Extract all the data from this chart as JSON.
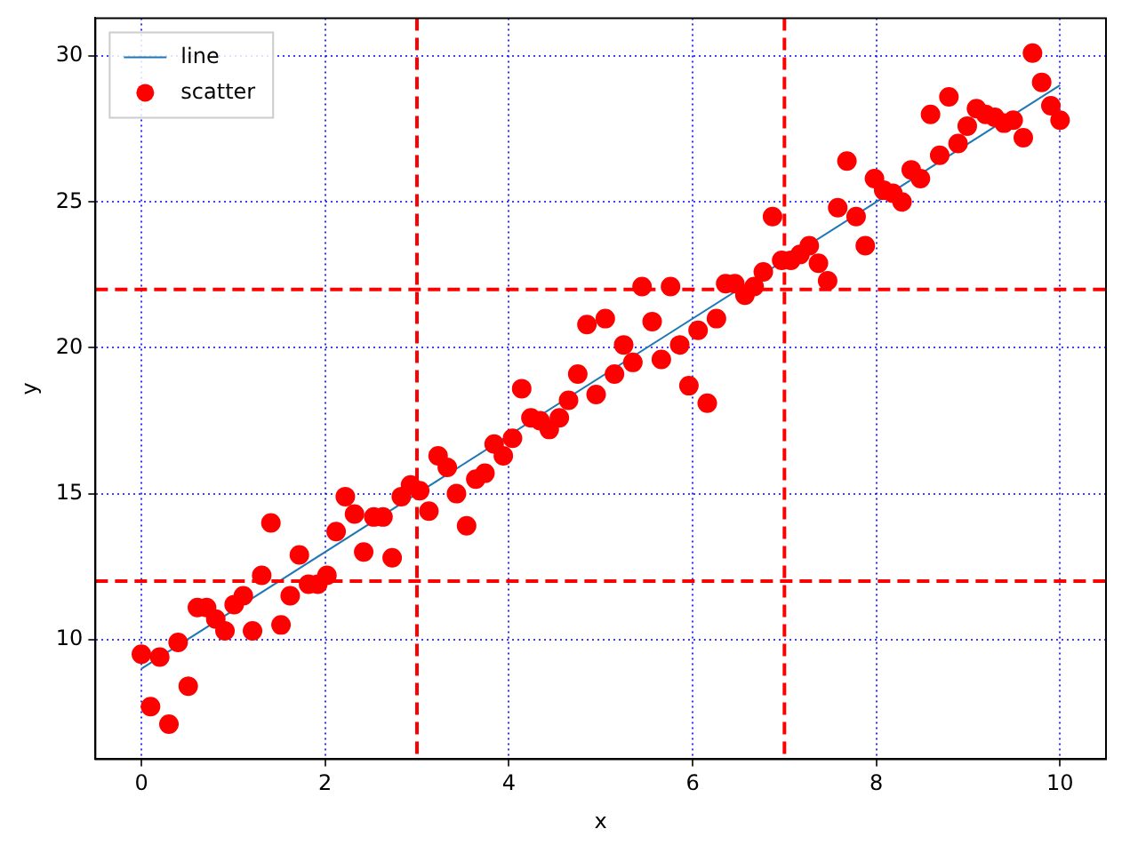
{
  "chart_data": {
    "type": "scatter",
    "xlabel": "x",
    "ylabel": "y",
    "xlim": [
      -0.5,
      10.5
    ],
    "ylim": [
      5.9,
      31.3
    ],
    "xticks": [
      0,
      2,
      4,
      6,
      8,
      10
    ],
    "yticks": [
      10,
      15,
      20,
      25,
      30
    ],
    "grid": true,
    "legend": "top left",
    "series": [
      {
        "name": "line",
        "type": "line",
        "color": "#1f77b4",
        "marker": "none",
        "line_style": "solid",
        "x": [
          0,
          10
        ],
        "values": [
          9,
          29
        ]
      },
      {
        "name": "scatter",
        "color": "#ff0000",
        "marker": "circle",
        "x": [
          0,
          0.1,
          0.2,
          0.3,
          0.4,
          0.51,
          0.61,
          0.71,
          0.81,
          0.91,
          1.01,
          1.11,
          1.21,
          1.31,
          1.41,
          1.52,
          1.62,
          1.72,
          1.82,
          1.92,
          2.02,
          2.12,
          2.22,
          2.32,
          2.42,
          2.53,
          2.63,
          2.73,
          2.83,
          2.93,
          3.03,
          3.13,
          3.23,
          3.33,
          3.43,
          3.54,
          3.64,
          3.74,
          3.84,
          3.94,
          4.04,
          4.14,
          4.24,
          4.34,
          4.44,
          4.55,
          4.65,
          4.75,
          4.85,
          4.95,
          5.05,
          5.15,
          5.25,
          5.35,
          5.45,
          5.56,
          5.66,
          5.76,
          5.86,
          5.96,
          6.06,
          6.16,
          6.26,
          6.36,
          6.46,
          6.57,
          6.67,
          6.77,
          6.87,
          6.97,
          7.07,
          7.17,
          7.27,
          7.37,
          7.47,
          7.58,
          7.68,
          7.78,
          7.88,
          7.98,
          8.08,
          8.18,
          8.28,
          8.38,
          8.48,
          8.59,
          8.69,
          8.79,
          8.89,
          8.99,
          9.09,
          9.19,
          9.29,
          9.39,
          9.49,
          9.6,
          9.7,
          9.8,
          9.9,
          10
        ],
        "values": [
          9.5,
          7.7,
          9.4,
          7.1,
          9.9,
          8.4,
          11.1,
          11.1,
          10.7,
          10.3,
          11.2,
          11.5,
          10.3,
          12.2,
          14.0,
          10.5,
          11.5,
          12.9,
          11.9,
          11.9,
          12.2,
          13.7,
          14.9,
          14.3,
          13.0,
          14.2,
          14.2,
          12.8,
          14.9,
          15.3,
          15.1,
          14.4,
          16.3,
          15.9,
          15.0,
          13.9,
          15.5,
          15.7,
          16.7,
          16.3,
          16.9,
          18.6,
          17.6,
          17.5,
          17.2,
          17.6,
          18.2,
          19.1,
          20.8,
          18.4,
          21.0,
          19.1,
          20.1,
          19.5,
          22.1,
          20.9,
          19.6,
          22.1,
          20.1,
          18.7,
          20.6,
          18.1,
          21.0,
          22.2,
          22.2,
          21.8,
          22.1,
          22.6,
          24.5,
          23.0,
          23.0,
          23.2,
          23.5,
          22.9,
          22.3,
          24.8,
          26.4,
          24.5,
          23.5,
          25.8,
          25.4,
          25.3,
          25.0,
          26.1,
          25.8,
          28.0,
          26.6,
          28.6,
          27.0,
          27.6,
          28.2,
          28.0,
          27.9,
          27.7,
          27.8,
          27.2,
          30.1,
          29.1,
          28.3,
          27.8
        ]
      }
    ],
    "ref_lines": [
      {
        "axis": "x",
        "value": 3,
        "color": "#ff0000",
        "line_style": "dashed"
      },
      {
        "axis": "x",
        "value": 7,
        "color": "#ff0000",
        "line_style": "dashed"
      },
      {
        "axis": "y",
        "value": 12,
        "color": "#ff0000",
        "line_style": "dashed"
      },
      {
        "axis": "y",
        "value": 22,
        "color": "#ff0000",
        "line_style": "dashed"
      }
    ]
  }
}
